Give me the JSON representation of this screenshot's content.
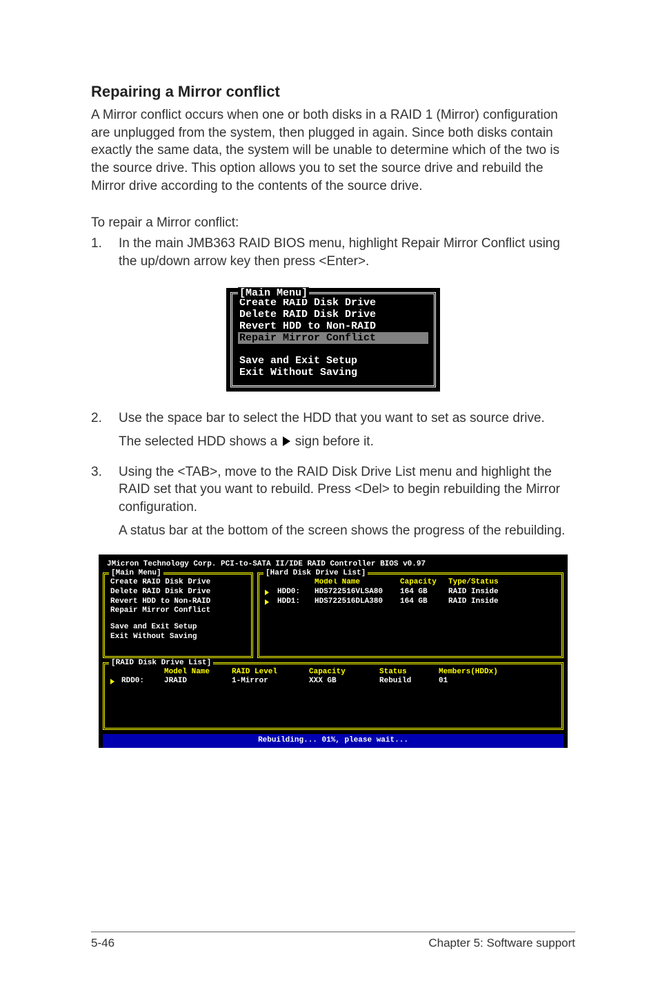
{
  "section": {
    "title": "Repairing a Mirror conflict",
    "intro": "A Mirror conflict occurs when one or both disks in a RAID 1 (Mirror) configuration are unplugged from the system, then plugged in again. Since both disks contain exactly the same data, the system will be unable to determine which of the two is the source drive. This option allows you to set the source drive and rebuild the Mirror drive according to the contents of the source drive.",
    "lead": "To repair a Mirror conflict:"
  },
  "steps": {
    "s1_num": "1.",
    "s1": "In the main JMB363 RAID BIOS menu, highlight Repair Mirror Conflict using the up/down arrow key then press <Enter>.",
    "s2_num": "2.",
    "s2a": "Use the space bar to select the HDD that you want to set as source drive.",
    "s2b_pre": "The selected HDD shows a ",
    "s2b_post": " sign before it.",
    "s3_num": "3.",
    "s3a": "Using the <TAB>, move to the RAID Disk Drive List menu and highlight the RAID set that you want to rebuild. Press <Del> to begin rebuilding the Mirror configuration.",
    "s3b": "A status bar at the bottom of the screen shows the progress of the rebuilding."
  },
  "bios1": {
    "title": "[Main Menu]",
    "i1": "Create RAID Disk Drive",
    "i2": "Delete RAID Disk Drive",
    "i3": "Revert HDD to Non-RAID",
    "i4": "Repair Mirror Conflict",
    "i5": "Save and Exit Setup",
    "i6": "Exit Without Saving"
  },
  "bios2": {
    "topline": "JMicron Technology Corp. PCI-to-SATA II/IDE RAID Controller BIOS v0.97",
    "main_title": "[Main Menu]",
    "main": {
      "i1": "Create RAID Disk Drive",
      "i2": "Delete RAID Disk Drive",
      "i3": "Revert HDD to Non-RAID",
      "i4": "Repair Mirror Conflict",
      "i5": "Save and Exit Setup",
      "i6": "Exit Without Saving"
    },
    "hdd_title": "[Hard Disk Drive List]",
    "hdd_header": {
      "c1": "Model Name",
      "c2": "Capacity",
      "c3": "Type/Status"
    },
    "hdd_rows": [
      {
        "id": "HDD0:",
        "model": "HDS722516VLSA80",
        "cap": "164 GB",
        "type": "RAID Inside"
      },
      {
        "id": "HDD1:",
        "model": "HDS722516DLA380",
        "cap": "164 GB",
        "type": "RAID Inside"
      }
    ],
    "raid_title": "[RAID Disk Drive List]",
    "raid_header": {
      "c1": "Model Name",
      "c2": "RAID Level",
      "c3": "Capacity",
      "c4": "Status",
      "c5": "Members(HDDx)"
    },
    "raid_rows": [
      {
        "id": "RDD0:",
        "model": "JRAID",
        "level": "1-Mirror",
        "cap": "XXX GB",
        "status": "Rebuild",
        "members": "01"
      }
    ],
    "statusbar": "Rebuilding... 01%, please wait..."
  },
  "footer": {
    "left": "5-46",
    "right": "Chapter 5: Software support"
  }
}
